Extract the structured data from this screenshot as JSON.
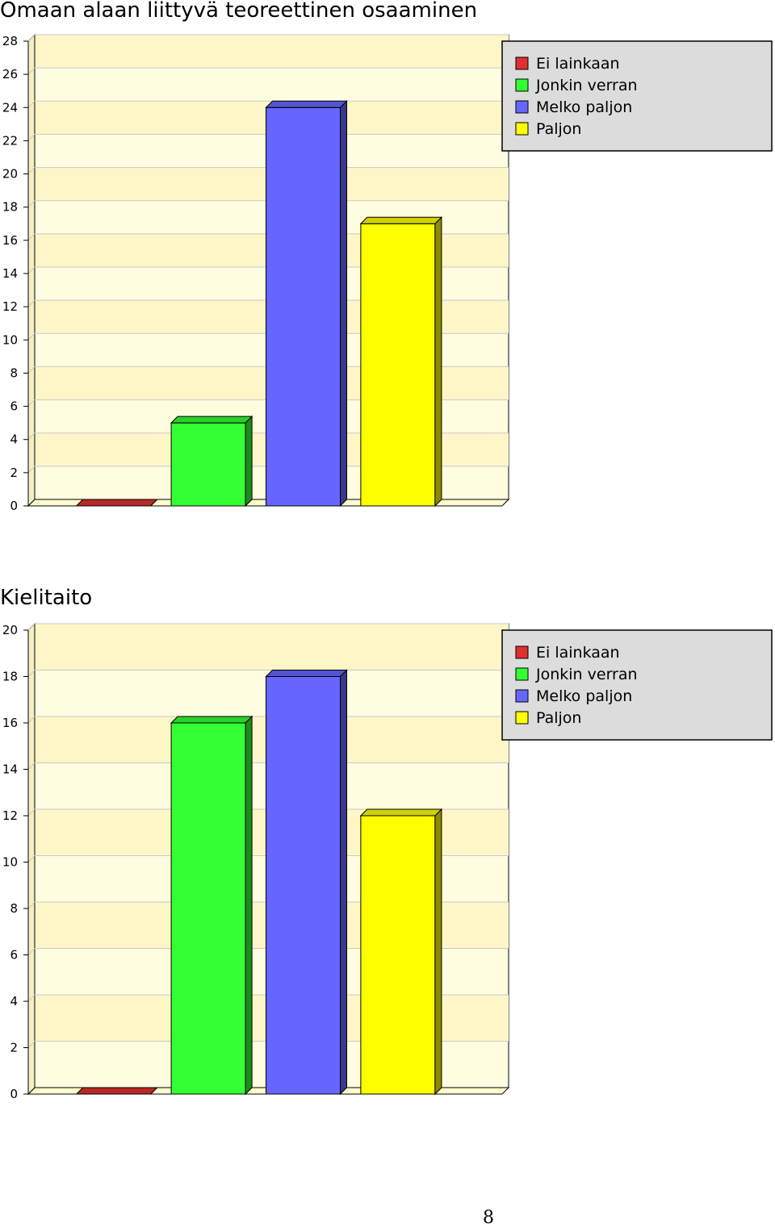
{
  "chart_data": [
    {
      "type": "bar",
      "title": "Omaan alaan liittyvä teoreettinen osaaminen",
      "categories": [
        "Ei lainkaan",
        "Jonkin verran",
        "Melko paljon",
        "Paljon"
      ],
      "values": [
        0,
        5,
        24,
        17
      ],
      "colors": [
        "#e03030",
        "#33ff33",
        "#6666ff",
        "#ffff00"
      ],
      "ylim": [
        0,
        28
      ],
      "yticks": [
        0,
        2,
        4,
        6,
        8,
        10,
        12,
        14,
        16,
        18,
        20,
        22,
        24,
        26,
        28
      ],
      "grid": true,
      "legend_position": "top-right"
    },
    {
      "type": "bar",
      "title": "Kielitaito",
      "categories": [
        "Ei lainkaan",
        "Jonkin verran",
        "Melko paljon",
        "Paljon"
      ],
      "values": [
        0,
        16,
        18,
        12
      ],
      "colors": [
        "#e03030",
        "#33ff33",
        "#6666ff",
        "#ffff00"
      ],
      "ylim": [
        0,
        20
      ],
      "yticks": [
        0,
        2,
        4,
        6,
        8,
        10,
        12,
        14,
        16,
        18,
        20
      ],
      "grid": true,
      "legend_position": "top-right"
    }
  ],
  "page_number": "8"
}
